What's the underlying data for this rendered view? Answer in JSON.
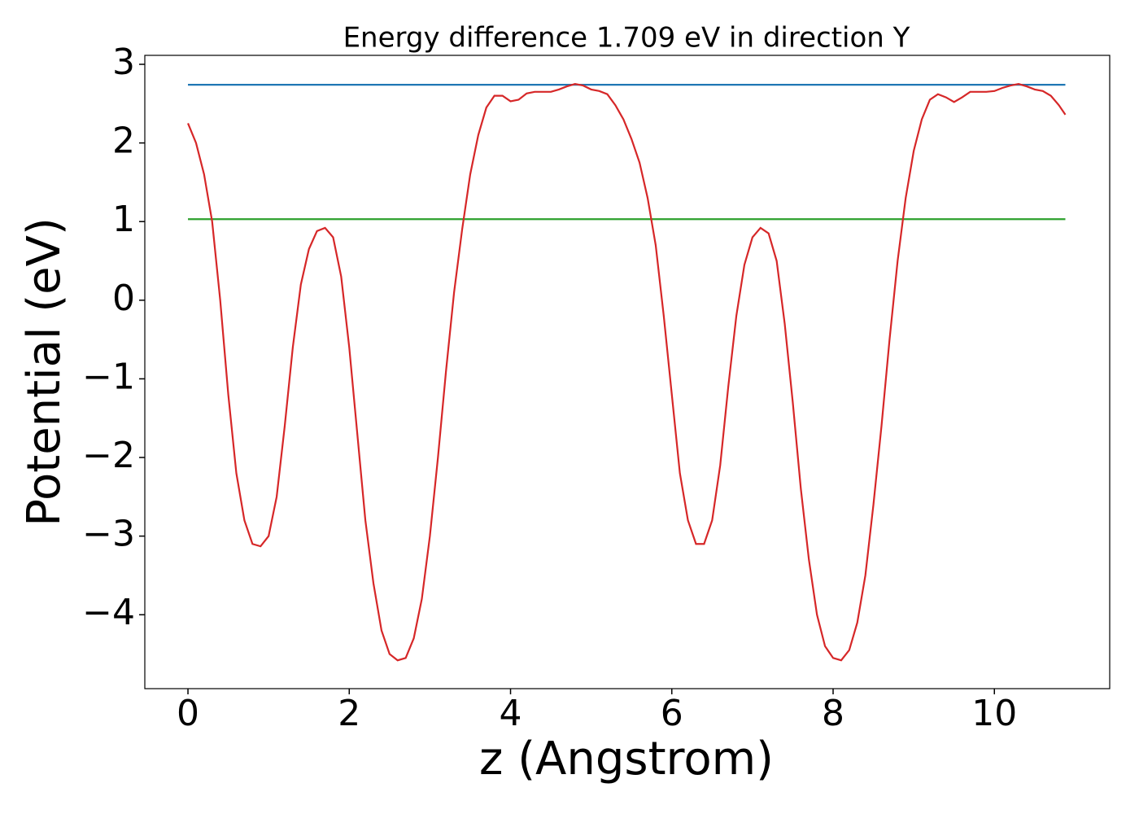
{
  "chart_data": {
    "type": "line",
    "title": "Energy difference 1.709 eV in direction Y",
    "xlabel": "z (Angstrom)",
    "ylabel": "Potential (eV)",
    "xlim": [
      -0.535,
      11.43
    ],
    "ylim": [
      -4.94,
      3.114
    ],
    "xticks": [
      0,
      2,
      4,
      6,
      8,
      10
    ],
    "yticks": [
      {
        "value": -4,
        "label": "−4"
      },
      {
        "value": -3,
        "label": "−3"
      },
      {
        "value": -2,
        "label": "−2"
      },
      {
        "value": -1,
        "label": "−1"
      },
      0,
      1,
      2,
      3
    ],
    "grid": false,
    "series": [
      {
        "color": "#d62728",
        "x": [
          0,
          0.1,
          0.2,
          0.3,
          0.4,
          0.5,
          0.6,
          0.7,
          0.8,
          0.9,
          1.0,
          1.1,
          1.2,
          1.3,
          1.4,
          1.5,
          1.6,
          1.7,
          1.8,
          1.9,
          2.0,
          2.1,
          2.2,
          2.3,
          2.4,
          2.5,
          2.6,
          2.7,
          2.8,
          2.9,
          3.0,
          3.1,
          3.2,
          3.3,
          3.4,
          3.5,
          3.6,
          3.7,
          3.8,
          3.9,
          4.0,
          4.1,
          4.2,
          4.3,
          4.4,
          4.5,
          4.6,
          4.7,
          4.8,
          4.9,
          5.0,
          5.1,
          5.2,
          5.3,
          5.4,
          5.5,
          5.6,
          5.7,
          5.8,
          5.9,
          6.0,
          6.1,
          6.2,
          6.3,
          6.4,
          6.5,
          6.6,
          6.7,
          6.8,
          6.9,
          7.0,
          7.1,
          7.2,
          7.3,
          7.4,
          7.5,
          7.6,
          7.7,
          7.8,
          7.9,
          8.0,
          8.1,
          8.2,
          8.3,
          8.4,
          8.5,
          8.6,
          8.7,
          8.8,
          8.9,
          9.0,
          9.1,
          9.2,
          9.3,
          9.4,
          9.5,
          9.6,
          9.7,
          9.8,
          9.9,
          10.0,
          10.1,
          10.2,
          10.3,
          10.4,
          10.5,
          10.6,
          10.7,
          10.8,
          10.88
        ],
        "values": [
          2.25,
          2.0,
          1.6,
          1.0,
          0.0,
          -1.2,
          -2.2,
          -2.8,
          -3.1,
          -3.13,
          -3.0,
          -2.5,
          -1.6,
          -0.6,
          0.2,
          0.65,
          0.88,
          0.92,
          0.8,
          0.3,
          -0.6,
          -1.7,
          -2.8,
          -3.6,
          -4.2,
          -4.5,
          -4.58,
          -4.55,
          -4.3,
          -3.8,
          -3.0,
          -2.0,
          -0.9,
          0.1,
          0.9,
          1.6,
          2.1,
          2.45,
          2.6,
          2.6,
          2.53,
          2.55,
          2.63,
          2.65,
          2.65,
          2.65,
          2.68,
          2.72,
          2.75,
          2.73,
          2.68,
          2.66,
          2.62,
          2.48,
          2.3,
          2.05,
          1.75,
          1.3,
          0.7,
          -0.2,
          -1.2,
          -2.2,
          -2.8,
          -3.1,
          -3.1,
          -2.8,
          -2.1,
          -1.1,
          -0.2,
          0.45,
          0.8,
          0.92,
          0.85,
          0.5,
          -0.3,
          -1.3,
          -2.4,
          -3.3,
          -4.0,
          -4.4,
          -4.55,
          -4.58,
          -4.45,
          -4.1,
          -3.5,
          -2.6,
          -1.6,
          -0.5,
          0.5,
          1.3,
          1.9,
          2.3,
          2.55,
          2.62,
          2.58,
          2.52,
          2.58,
          2.65,
          2.65,
          2.65,
          2.66,
          2.7,
          2.73,
          2.75,
          2.72,
          2.68,
          2.66,
          2.6,
          2.48,
          2.36
        ]
      },
      {
        "color": "#1f77b4",
        "x": [
          0,
          10.88
        ],
        "values": [
          2.74,
          2.74
        ]
      },
      {
        "color": "#2ca02c",
        "x": [
          0,
          10.88
        ],
        "values": [
          1.031,
          1.031
        ]
      }
    ]
  }
}
